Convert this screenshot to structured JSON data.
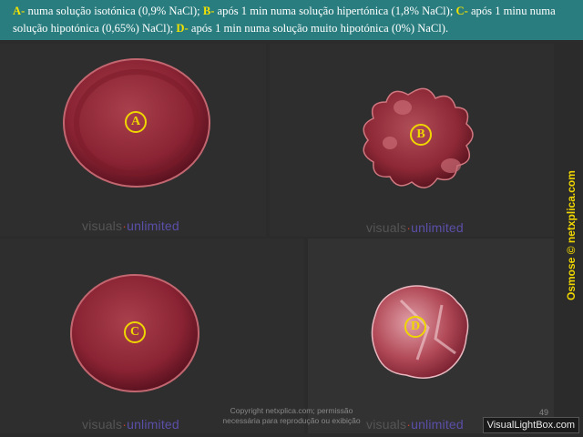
{
  "caption": {
    "a_label": "A-",
    "a_text": " numa solução isotónica (0,9% NaCl); ",
    "b_label": "B-",
    "b_text": " após 1 min numa solução hipertónica (1,8% NaCl); ",
    "c_label": "C-",
    "c_text": " após 1 minu numa solução hipotónica (0,65%) NaCl); ",
    "d_label": "D-",
    "d_text": " após 1 min numa solução muito hipotónica (0%) NaCl)."
  },
  "tags": {
    "a": "A",
    "b": "B",
    "c": "C",
    "d": "D"
  },
  "watermark": {
    "visuals": "visuals",
    "unlimited": "unlimited"
  },
  "side_text": "Osmose © netxplica.com",
  "copyright": {
    "line1": "Copyright netxplica.com; permissão",
    "line2": "necessária para reprodução ou exibição"
  },
  "page_number": "49",
  "badge": "VisualLightBox.com",
  "colors": {
    "caption_bg": "#2a7d7f",
    "label_yellow": "#f2e200",
    "cell_red": "#8b2030"
  }
}
